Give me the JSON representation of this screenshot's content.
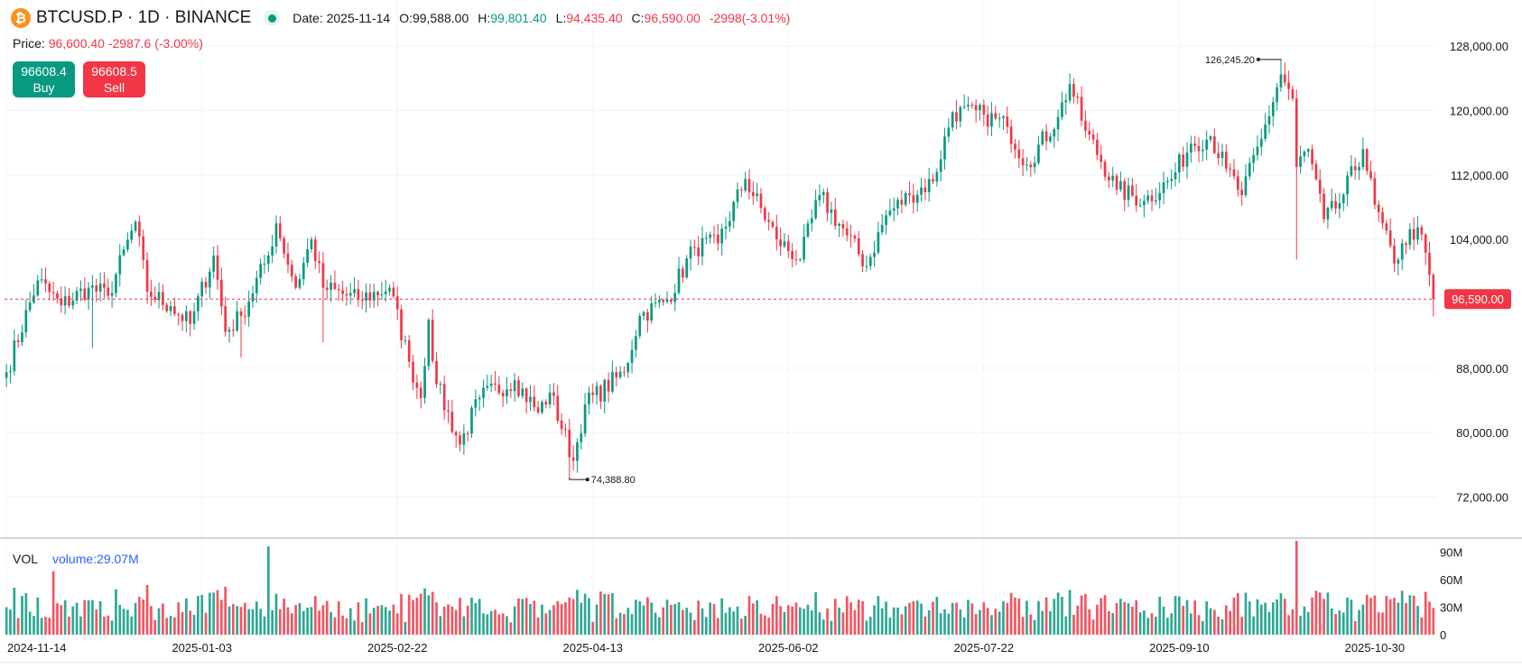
{
  "header": {
    "icon": "bitcoin-icon",
    "symbol": "BTCUSD.P · 1D · BINANCE",
    "date": "Date: 2025-11-14",
    "o_label": "O:",
    "o_value": "99,588.00",
    "h_label": "H:",
    "h_value": "99,801.40",
    "l_label": "L:",
    "l_value": "94,435.40",
    "c_label": "C:",
    "c_value": "96,590.00",
    "change": "-2998(-3.01%)"
  },
  "price": {
    "label": "Price:",
    "value": "96,600.40 -2987.6 (-3.00%)"
  },
  "trade": {
    "buy_price": "96608.4",
    "buy_label": "Buy",
    "sell_price": "96608.5",
    "sell_label": "Sell"
  },
  "volume": {
    "label": "VOL",
    "value": "volume:29.07M"
  },
  "colors": {
    "up": "#089981",
    "down": "#f23645",
    "grid": "#f0f3fa",
    "volume_blue": "#2962ff"
  },
  "chart_data": {
    "type": "candlestick",
    "interval": "1D",
    "price_axis": {
      "ylim": [
        67000,
        131500
      ],
      "ticks": [
        128000,
        120000,
        112000,
        104000,
        96000,
        88000,
        80000,
        72000
      ],
      "tick_labels": [
        "128,000.00",
        "120,000.00",
        "112,000.00",
        "104,000.00",
        "",
        "88,000.00",
        "80,000.00",
        "72,000.00"
      ]
    },
    "volume_axis": {
      "ylim": [
        0,
        104
      ],
      "unit": "M",
      "ticks": [
        0,
        30,
        60,
        90
      ],
      "tick_labels": [
        "0",
        "30M",
        "60M",
        "90M"
      ]
    },
    "x_axis": {
      "start": "2024-11-14",
      "end": "2025-11-14",
      "ticks": [
        "2024-11-14",
        "2025-01-03",
        "2025-02-22",
        "2025-04-13",
        "2025-06-02",
        "2025-07-22",
        "2025-09-10",
        "2025-10-30"
      ]
    },
    "last_price": {
      "value": 96590,
      "label": "96,590.00"
    },
    "annotations": [
      {
        "date": "2025-10-06",
        "value": 126245.2,
        "label": "126,245.20",
        "type": "high"
      },
      {
        "date": "2025-04-07",
        "value": 74388.8,
        "label": "74,388.80",
        "type": "low"
      }
    ],
    "anchors": [
      [
        "2024-11-14",
        87500
      ],
      [
        "2024-11-22",
        98900
      ],
      [
        "2024-11-28",
        95800
      ],
      [
        "2024-12-05",
        98000
      ],
      [
        "2024-12-10",
        97000
      ],
      [
        "2024-12-17",
        106200
      ],
      [
        "2024-12-20",
        97500
      ],
      [
        "2024-12-26",
        95700
      ],
      [
        "2024-12-31",
        93500
      ],
      [
        "2025-01-06",
        102000
      ],
      [
        "2025-01-09",
        92500
      ],
      [
        "2025-01-13",
        94500
      ],
      [
        "2025-01-20",
        102000
      ],
      [
        "2025-01-22",
        106000
      ],
      [
        "2025-01-27",
        98000
      ],
      [
        "2025-01-31",
        104000
      ],
      [
        "2025-02-03",
        98000
      ],
      [
        "2025-02-12",
        96500
      ],
      [
        "2025-02-20",
        98000
      ],
      [
        "2025-02-25",
        88800
      ],
      [
        "2025-02-28",
        84300
      ],
      [
        "2025-03-02",
        94000
      ],
      [
        "2025-03-04",
        86000
      ],
      [
        "2025-03-10",
        78500
      ],
      [
        "2025-03-15",
        84300
      ],
      [
        "2025-03-24",
        86500
      ],
      [
        "2025-03-30",
        82500
      ],
      [
        "2025-04-02",
        85000
      ],
      [
        "2025-04-08",
        76500
      ],
      [
        "2025-04-11",
        83500
      ],
      [
        "2025-04-21",
        87500
      ],
      [
        "2025-04-25",
        94500
      ],
      [
        "2025-05-02",
        96500
      ],
      [
        "2025-05-09",
        103000
      ],
      [
        "2025-05-15",
        103500
      ],
      [
        "2025-05-22",
        111500
      ],
      [
        "2025-05-30",
        104000
      ],
      [
        "2025-06-05",
        101500
      ],
      [
        "2025-06-10",
        109500
      ],
      [
        "2025-06-17",
        104500
      ],
      [
        "2025-06-22",
        100700
      ],
      [
        "2025-06-27",
        107000
      ],
      [
        "2025-07-03",
        109500
      ],
      [
        "2025-07-09",
        111200
      ],
      [
        "2025-07-14",
        119800
      ],
      [
        "2025-07-22",
        119500
      ],
      [
        "2025-07-28",
        118000
      ],
      [
        "2025-08-02",
        113300
      ],
      [
        "2025-08-10",
        119200
      ],
      [
        "2025-08-13",
        123300
      ],
      [
        "2025-08-17",
        117500
      ],
      [
        "2025-08-25",
        110200
      ],
      [
        "2025-09-01",
        108800
      ],
      [
        "2025-09-08",
        111500
      ],
      [
        "2025-09-13",
        115900
      ],
      [
        "2025-09-18",
        116800
      ],
      [
        "2025-09-22",
        112800
      ],
      [
        "2025-09-26",
        109500
      ],
      [
        "2025-10-01",
        116500
      ],
      [
        "2025-10-06",
        124500
      ],
      [
        "2025-10-09",
        121500
      ],
      [
        "2025-10-10",
        113000
      ],
      [
        "2025-10-13",
        115200
      ],
      [
        "2025-10-17",
        106500
      ],
      [
        "2025-10-21",
        108500
      ],
      [
        "2025-10-27",
        115200
      ],
      [
        "2025-10-30",
        108300
      ],
      [
        "2025-11-04",
        101000
      ],
      [
        "2025-11-06",
        103500
      ],
      [
        "2025-11-10",
        105500
      ],
      [
        "2025-11-13",
        99600
      ],
      [
        "2025-11-14",
        96590
      ]
    ],
    "volume_spikes": [
      {
        "date": "2025-01-20",
        "value": 96
      },
      {
        "date": "2025-10-10",
        "value": 102
      },
      {
        "date": "2024-11-26",
        "value": 69
      },
      {
        "date": "2025-10-06",
        "value": 45
      }
    ]
  }
}
